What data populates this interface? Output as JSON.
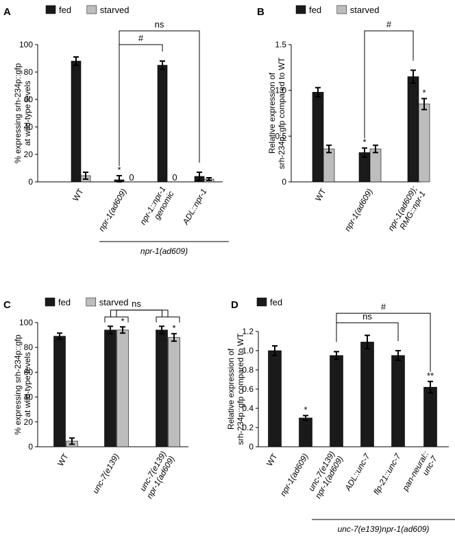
{
  "chart_data": [
    {
      "type": "bar",
      "panel_label": "A",
      "legend": [
        "fed",
        "starved"
      ],
      "ylabel_lines": [
        "% expressing srh-234p::gfp",
        "at wild-type levels"
      ],
      "ylim": [
        0,
        100
      ],
      "yticks": [
        0,
        20,
        40,
        60,
        80,
        100
      ],
      "yticklabels": [
        "0",
        "20",
        "40",
        "60",
        "80",
        "100"
      ],
      "categories": [
        "WT",
        "npr-1(ad609)",
        "npr-1::npr-1 genomic",
        "ADL::npr-1"
      ],
      "category_lines": [
        [
          "WT"
        ],
        [
          "npr-1(ad609)"
        ],
        [
          "npr-1::npr-1",
          "genomic"
        ],
        [
          "ADL::npr-1"
        ]
      ],
      "series": [
        {
          "name": "fed",
          "color": "#1a1a1a",
          "values": [
            88,
            1.5,
            85,
            4
          ],
          "errors": [
            3,
            3,
            3,
            3
          ]
        },
        {
          "name": "starved",
          "color": "#bdbdbd",
          "values": [
            4.5,
            0,
            0,
            2
          ],
          "errors": [
            2.5,
            0,
            0,
            1
          ]
        }
      ],
      "zero_labels": [
        {
          "category": 1,
          "text": "0"
        },
        {
          "category": 2,
          "text": "0"
        }
      ],
      "annotations": [
        {
          "category": 1,
          "series": 0,
          "text": "*"
        }
      ],
      "brackets": [
        {
          "from": 1,
          "to": 3,
          "text": "ns",
          "level": 110
        },
        {
          "from": 1,
          "to": 2,
          "text": "#",
          "level": 100
        }
      ],
      "group_label": {
        "text": "npr-1(ad609)",
        "from": 1,
        "to": 3
      }
    },
    {
      "type": "bar",
      "panel_label": "B",
      "legend": [
        "fed",
        "starved"
      ],
      "ylabel_lines": [
        "Relative expression of",
        "srh-234p::gfp compared to WT"
      ],
      "ylim": [
        0,
        1.5
      ],
      "yticks": [
        0,
        0.5,
        1.0,
        1.5
      ],
      "yticklabels": [
        "0",
        "0.5",
        "1.0",
        "1.5"
      ],
      "categories": [
        "WT",
        "npr-1(ad609)",
        "npr-1(ad609); RMG::npr-1"
      ],
      "category_lines": [
        [
          "WT"
        ],
        [
          "npr-1(ad609)"
        ],
        [
          "npr-1(ad609);",
          "RMG::npr-1"
        ]
      ],
      "series": [
        {
          "name": "fed",
          "color": "#1a1a1a",
          "values": [
            0.98,
            0.32,
            1.15
          ],
          "errors": [
            0.05,
            0.05,
            0.07
          ]
        },
        {
          "name": "starved",
          "color": "#bdbdbd",
          "values": [
            0.36,
            0.36,
            0.85
          ],
          "errors": [
            0.04,
            0.04,
            0.06
          ]
        }
      ],
      "annotations": [
        {
          "category": 1,
          "series": 0,
          "text": "*"
        },
        {
          "category": 2,
          "series": 1,
          "text": "*"
        }
      ],
      "brackets": [
        {
          "from": 1,
          "to": 2,
          "text": "#",
          "level": 1.65
        }
      ]
    },
    {
      "type": "bar",
      "panel_label": "C",
      "legend": [
        "fed",
        "starved"
      ],
      "ylabel_lines": [
        "% expressing srh-234p::gfp",
        "at wild-type levels"
      ],
      "ylim": [
        0,
        100
      ],
      "yticks": [
        0,
        20,
        40,
        60,
        80,
        100
      ],
      "yticklabels": [
        "0",
        "20",
        "40",
        "60",
        "80",
        "100"
      ],
      "categories": [
        "WT",
        "unc-7(e139)",
        "unc-7(e139) npr-1(ad609)"
      ],
      "category_lines": [
        [
          "WT"
        ],
        [
          "unc-7(e139)"
        ],
        [
          "unc-7(e139)",
          "npr-1(ad609)"
        ]
      ],
      "series": [
        {
          "name": "fed",
          "color": "#1a1a1a",
          "values": [
            89,
            94,
            94
          ],
          "errors": [
            2.5,
            3,
            3
          ]
        },
        {
          "name": "starved",
          "color": "#bdbdbd",
          "values": [
            4.5,
            94,
            88
          ],
          "errors": [
            2.5,
            2.5,
            3
          ]
        }
      ],
      "annotations": [
        {
          "category": 1,
          "series": 1,
          "text": "*"
        },
        {
          "category": 2,
          "series": 1,
          "text": "*"
        }
      ],
      "brackets": [
        {
          "from": 1,
          "to": 2,
          "text": "ns",
          "level": 110
        }
      ]
    },
    {
      "type": "bar",
      "panel_label": "D",
      "legend": [
        "fed"
      ],
      "ylabel_lines": [
        "Relative expression of",
        "srh-234p::gfp compared to WT"
      ],
      "ylim": [
        0,
        1.2
      ],
      "yticks": [
        0,
        0.2,
        0.4,
        0.6,
        0.8,
        1.0,
        1.2
      ],
      "yticklabels": [
        "0",
        "0.2",
        "0.4",
        "0.6",
        "0.8",
        "1.0",
        "1.2"
      ],
      "categories": [
        "WT",
        "npr-1(ad609)",
        "unc-7(e139) npr-1(ad609)",
        "ADL::unc-7",
        "flp-21::unc-7",
        "pan-neural:: unc-7"
      ],
      "category_lines": [
        [
          "WT"
        ],
        [
          "npr-1(ad609)"
        ],
        [
          "unc-7(e139)",
          "npr-1(ad609)"
        ],
        [
          "ADL::unc-7"
        ],
        [
          "flp-21::unc-7"
        ],
        [
          "pan-neural::",
          "unc-7"
        ]
      ],
      "series": [
        {
          "name": "fed",
          "color": "#1a1a1a",
          "values": [
            1.0,
            0.3,
            0.95,
            1.09,
            0.95,
            0.62
          ],
          "errors": [
            0.05,
            0.025,
            0.04,
            0.07,
            0.05,
            0.06
          ]
        }
      ],
      "annotations": [
        {
          "category": 1,
          "series": 0,
          "text": "*"
        },
        {
          "category": 5,
          "series": 0,
          "text": "**"
        }
      ],
      "brackets": [
        {
          "from": 2,
          "to": 5,
          "text": "#",
          "level": 1.39
        },
        {
          "from": 2,
          "to": 4,
          "text": "ns",
          "level": 1.29
        }
      ],
      "group_label": {
        "text": "unc-7(e139)npr-1(ad609)",
        "from": 2,
        "to": 5
      }
    }
  ]
}
